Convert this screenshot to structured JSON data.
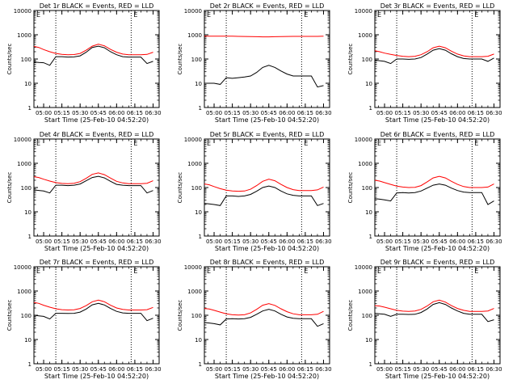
{
  "figure": {
    "background": "#ffffff",
    "events_color": "#000000",
    "lld_color": "#ff0000",
    "shared_xlabel": "Start Time (25-Feb-10 04:52:20)",
    "shared_ylabel": "Counts/sec",
    "x_tick_labels": [
      "05:00",
      "05:15",
      "05:30",
      "05:45",
      "06:00",
      "06:15",
      "06:30"
    ],
    "y_tick_labels": [
      "1",
      "10",
      "100",
      "1000",
      "10000"
    ],
    "top_marker_labels": [
      "E",
      "E"
    ]
  },
  "chart_data": [
    {
      "type": "line",
      "title": "Det 1r BLACK = Events, RED = LLD",
      "xlabel": "Start Time (25-Feb-10 04:52:20)",
      "ylabel": "Counts/sec",
      "x": [
        "04:52",
        "04:56",
        "05:00",
        "05:05",
        "05:10",
        "05:15",
        "05:20",
        "05:25",
        "05:30",
        "05:35",
        "05:40",
        "05:45",
        "05:50",
        "05:55",
        "06:00",
        "06:05",
        "06:10",
        "06:15",
        "06:20",
        "06:25",
        "06:30"
      ],
      "series": [
        {
          "name": "LLD",
          "color": "#ff0000",
          "values": [
            330,
            300,
            245,
            200,
            170,
            155,
            150,
            152,
            170,
            230,
            340,
            410,
            350,
            250,
            190,
            160,
            150,
            150,
            150,
            155,
            190
          ]
        },
        {
          "name": "Events",
          "color": "#000000",
          "values": [
            75,
            72,
            70,
            55,
            125,
            125,
            120,
            122,
            135,
            190,
            300,
            340,
            290,
            200,
            150,
            125,
            120,
            120,
            120,
            65,
            80
          ]
        }
      ],
      "ylim": [
        1,
        10000
      ],
      "yscale": "log",
      "xlim": [
        "04:52",
        "06:35"
      ],
      "grid": false,
      "dotted_vlines": [
        "05:10",
        "06:12"
      ]
    },
    {
      "type": "line",
      "title": "Det 2r BLACK = Events, RED = LLD",
      "xlabel": "Start Time (25-Feb-10 04:52:20)",
      "ylabel": "Counts/sec",
      "x": [
        "04:52",
        "04:56",
        "05:00",
        "05:05",
        "05:10",
        "05:15",
        "05:20",
        "05:25",
        "05:30",
        "05:35",
        "05:40",
        "05:45",
        "05:50",
        "05:55",
        "06:00",
        "06:05",
        "06:10",
        "06:15",
        "06:20",
        "06:25",
        "06:30"
      ],
      "series": [
        {
          "name": "LLD",
          "color": "#ff0000",
          "values": [
            870,
            880,
            880,
            880,
            875,
            870,
            860,
            850,
            840,
            830,
            820,
            820,
            830,
            840,
            850,
            860,
            860,
            860,
            860,
            860,
            870
          ]
        },
        {
          "name": "Events",
          "color": "#000000",
          "values": [
            10,
            10,
            10,
            9,
            17,
            16,
            17,
            18,
            20,
            28,
            45,
            55,
            45,
            32,
            24,
            20,
            20,
            20,
            20,
            7,
            8
          ]
        }
      ],
      "ylim": [
        1,
        10000
      ],
      "yscale": "log",
      "xlim": [
        "04:52",
        "06:35"
      ],
      "grid": false,
      "dotted_vlines": [
        "05:10",
        "06:12"
      ]
    },
    {
      "type": "line",
      "title": "Det 3r BLACK = Events, RED = LLD",
      "xlabel": "Start Time (25-Feb-10 04:52:20)",
      "ylabel": "Counts/sec",
      "x": [
        "04:52",
        "04:56",
        "05:00",
        "05:05",
        "05:10",
        "05:15",
        "05:20",
        "05:25",
        "05:30",
        "05:35",
        "05:40",
        "05:45",
        "05:50",
        "05:55",
        "06:00",
        "06:05",
        "06:10",
        "06:15",
        "06:20",
        "06:25",
        "06:30"
      ],
      "series": [
        {
          "name": "LLD",
          "color": "#ff0000",
          "values": [
            220,
            200,
            175,
            155,
            140,
            130,
            125,
            130,
            150,
            200,
            290,
            340,
            290,
            210,
            160,
            135,
            125,
            125,
            125,
            130,
            160
          ]
        },
        {
          "name": "Events",
          "color": "#000000",
          "values": [
            90,
            85,
            80,
            65,
            100,
            100,
            97,
            100,
            115,
            160,
            230,
            270,
            230,
            165,
            125,
            105,
            100,
            100,
            100,
            80,
            110
          ]
        }
      ],
      "ylim": [
        1,
        10000
      ],
      "yscale": "log",
      "xlim": [
        "04:52",
        "06:35"
      ],
      "grid": false,
      "dotted_vlines": [
        "05:10",
        "06:12"
      ]
    },
    {
      "type": "line",
      "title": "Det 4r BLACK = Events, RED = LLD",
      "xlabel": "Start Time (25-Feb-10 04:52:20)",
      "ylabel": "Counts/sec",
      "x": [
        "04:52",
        "04:56",
        "05:00",
        "05:05",
        "05:10",
        "05:15",
        "05:20",
        "05:25",
        "05:30",
        "05:35",
        "05:40",
        "05:45",
        "05:50",
        "05:55",
        "06:00",
        "06:05",
        "06:10",
        "06:15",
        "06:20",
        "06:25",
        "06:30"
      ],
      "series": [
        {
          "name": "LLD",
          "color": "#ff0000",
          "values": [
            280,
            260,
            220,
            185,
            160,
            148,
            145,
            150,
            175,
            240,
            350,
            400,
            340,
            245,
            180,
            155,
            145,
            145,
            145,
            150,
            190
          ]
        },
        {
          "name": "Events",
          "color": "#000000",
          "values": [
            80,
            76,
            72,
            60,
            125,
            125,
            120,
            125,
            140,
            190,
            260,
            290,
            250,
            180,
            135,
            125,
            120,
            120,
            120,
            60,
            75
          ]
        }
      ],
      "ylim": [
        1,
        10000
      ],
      "yscale": "log",
      "xlim": [
        "04:52",
        "06:35"
      ],
      "grid": false,
      "dotted_vlines": [
        "05:10",
        "06:12"
      ]
    },
    {
      "type": "line",
      "title": "Det 5r BLACK = Events, RED = LLD",
      "xlabel": "Start Time (25-Feb-10 04:52:20)",
      "ylabel": "Counts/sec",
      "x": [
        "04:52",
        "04:56",
        "05:00",
        "05:05",
        "05:10",
        "05:15",
        "05:20",
        "05:25",
        "05:30",
        "05:35",
        "05:40",
        "05:45",
        "05:50",
        "05:55",
        "06:00",
        "06:05",
        "06:10",
        "06:15",
        "06:20",
        "06:25",
        "06:30"
      ],
      "series": [
        {
          "name": "LLD",
          "color": "#ff0000",
          "values": [
            140,
            130,
            110,
            90,
            78,
            72,
            70,
            72,
            85,
            120,
            180,
            220,
            190,
            135,
            100,
            82,
            75,
            75,
            75,
            80,
            105
          ]
        },
        {
          "name": "Events",
          "color": "#000000",
          "values": [
            22,
            21,
            20,
            18,
            45,
            45,
            43,
            45,
            52,
            70,
            100,
            115,
            100,
            72,
            55,
            48,
            45,
            45,
            45,
            18,
            22
          ]
        }
      ],
      "ylim": [
        1,
        10000
      ],
      "yscale": "log",
      "xlim": [
        "04:52",
        "06:35"
      ],
      "grid": false,
      "dotted_vlines": [
        "05:10",
        "06:12"
      ]
    },
    {
      "type": "line",
      "title": "Det 6r BLACK = Events, RED = LLD",
      "xlabel": "Start Time (25-Feb-10 04:52:20)",
      "ylabel": "Counts/sec",
      "x": [
        "04:52",
        "04:56",
        "05:00",
        "05:05",
        "05:10",
        "05:15",
        "05:20",
        "05:25",
        "05:30",
        "05:35",
        "05:40",
        "05:45",
        "05:50",
        "05:55",
        "06:00",
        "06:05",
        "06:10",
        "06:15",
        "06:20",
        "06:25",
        "06:30"
      ],
      "series": [
        {
          "name": "LLD",
          "color": "#ff0000",
          "values": [
            200,
            185,
            160,
            135,
            115,
            105,
            100,
            102,
            120,
            170,
            250,
            290,
            250,
            180,
            135,
            110,
            100,
            100,
            100,
            105,
            140
          ]
        },
        {
          "name": "Events",
          "color": "#000000",
          "values": [
            35,
            33,
            31,
            28,
            60,
            62,
            60,
            62,
            72,
            95,
            125,
            140,
            125,
            95,
            75,
            65,
            62,
            62,
            62,
            20,
            28
          ]
        }
      ],
      "ylim": [
        1,
        10000
      ],
      "yscale": "log",
      "xlim": [
        "04:52",
        "06:35"
      ],
      "grid": false,
      "dotted_vlines": [
        "05:10",
        "06:12"
      ]
    },
    {
      "type": "line",
      "title": "Det 7r BLACK = Events, RED = LLD",
      "xlabel": "Start Time (25-Feb-10 04:52:20)",
      "ylabel": "Counts/sec",
      "x": [
        "04:52",
        "04:56",
        "05:00",
        "05:05",
        "05:10",
        "05:15",
        "05:20",
        "05:25",
        "05:30",
        "05:35",
        "05:40",
        "05:45",
        "05:50",
        "05:55",
        "06:00",
        "06:05",
        "06:10",
        "06:15",
        "06:20",
        "06:25",
        "06:30"
      ],
      "series": [
        {
          "name": "LLD",
          "color": "#ff0000",
          "values": [
            340,
            310,
            260,
            215,
            185,
            170,
            165,
            168,
            190,
            250,
            360,
            420,
            360,
            260,
            200,
            175,
            165,
            165,
            165,
            170,
            210
          ]
        },
        {
          "name": "Events",
          "color": "#000000",
          "values": [
            100,
            95,
            90,
            70,
            120,
            120,
            118,
            120,
            135,
            180,
            270,
            310,
            265,
            190,
            145,
            125,
            120,
            120,
            120,
            60,
            75
          ]
        }
      ],
      "ylim": [
        1,
        10000
      ],
      "yscale": "log",
      "xlim": [
        "04:52",
        "06:35"
      ],
      "grid": false,
      "dotted_vlines": [
        "05:10",
        "06:12"
      ]
    },
    {
      "type": "line",
      "title": "Det 8r BLACK = Events, RED = LLD",
      "xlabel": "Start Time (25-Feb-10 04:52:20)",
      "ylabel": "Counts/sec",
      "x": [
        "04:52",
        "04:56",
        "05:00",
        "05:05",
        "05:10",
        "05:15",
        "05:20",
        "05:25",
        "05:30",
        "05:35",
        "05:40",
        "05:45",
        "05:50",
        "05:55",
        "06:00",
        "06:05",
        "06:10",
        "06:15",
        "06:20",
        "06:25",
        "06:30"
      ],
      "series": [
        {
          "name": "LLD",
          "color": "#ff0000",
          "values": [
            190,
            180,
            160,
            135,
            115,
            105,
            102,
            105,
            125,
            175,
            260,
            300,
            255,
            185,
            140,
            115,
            105,
            105,
            105,
            110,
            145
          ]
        },
        {
          "name": "Events",
          "color": "#000000",
          "values": [
            50,
            48,
            45,
            40,
            70,
            72,
            70,
            72,
            82,
            110,
            150,
            175,
            150,
            110,
            85,
            75,
            72,
            72,
            72,
            35,
            45
          ]
        }
      ],
      "ylim": [
        1,
        10000
      ],
      "yscale": "log",
      "xlim": [
        "04:52",
        "06:35"
      ],
      "grid": false,
      "dotted_vlines": [
        "05:10",
        "06:12"
      ]
    },
    {
      "type": "line",
      "title": "Det 9r BLACK = Events, RED = LLD",
      "xlabel": "Start Time (25-Feb-10 04:52:20)",
      "ylabel": "Counts/sec",
      "x": [
        "04:52",
        "04:56",
        "05:00",
        "05:05",
        "05:10",
        "05:15",
        "05:20",
        "05:25",
        "05:30",
        "05:35",
        "05:40",
        "05:45",
        "05:50",
        "05:55",
        "06:00",
        "06:05",
        "06:10",
        "06:15",
        "06:20",
        "06:25",
        "06:30"
      ],
      "series": [
        {
          "name": "LLD",
          "color": "#ff0000",
          "values": [
            250,
            240,
            215,
            185,
            160,
            148,
            145,
            150,
            175,
            240,
            360,
            420,
            350,
            250,
            190,
            160,
            145,
            145,
            145,
            150,
            190
          ]
        },
        {
          "name": "Events",
          "color": "#000000",
          "values": [
            120,
            115,
            110,
            90,
            110,
            110,
            108,
            110,
            130,
            180,
            280,
            330,
            280,
            200,
            150,
            120,
            110,
            110,
            110,
            55,
            65
          ]
        }
      ],
      "ylim": [
        1,
        10000
      ],
      "yscale": "log",
      "xlim": [
        "04:52",
        "06:35"
      ],
      "grid": false,
      "dotted_vlines": [
        "05:10",
        "06:12"
      ]
    }
  ]
}
